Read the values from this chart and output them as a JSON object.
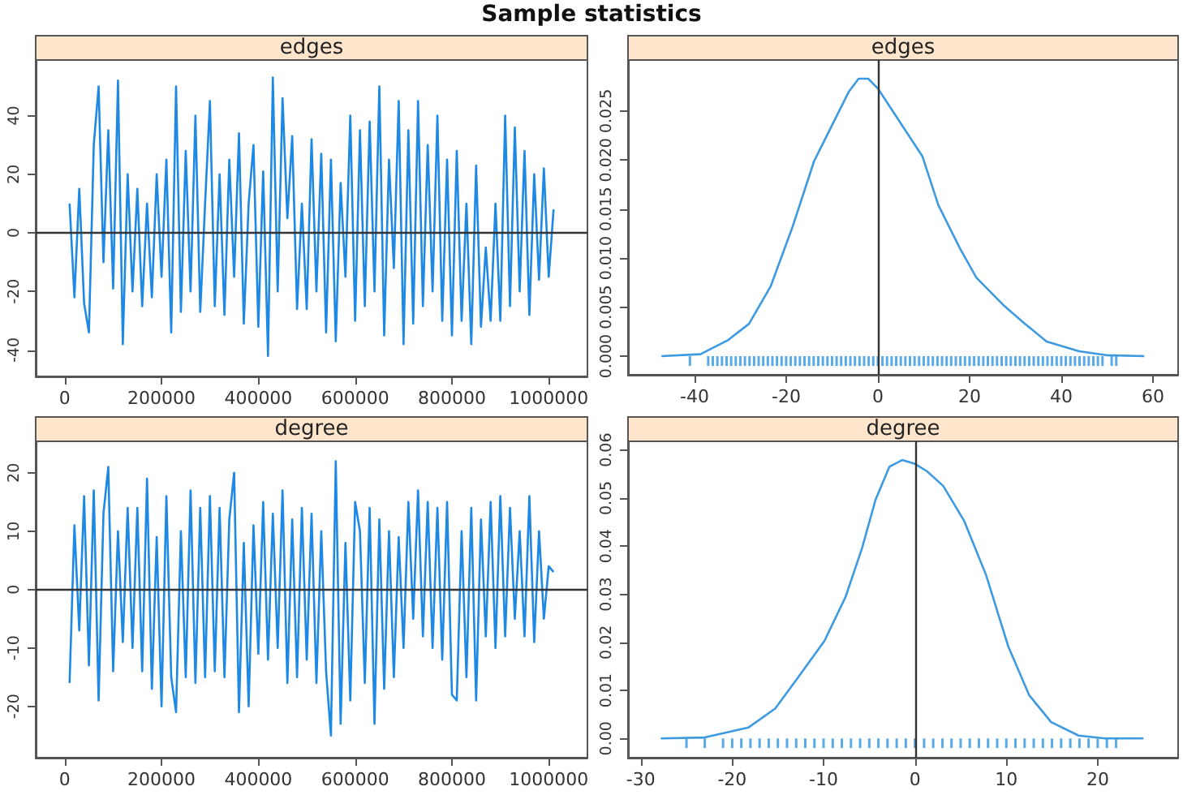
{
  "chart_data": [
    {
      "type": "line",
      "title": "edges",
      "annotations": [
        "Sample statistics"
      ],
      "x": [
        10000,
        20000,
        30000,
        40000,
        50000,
        60000,
        70000,
        80000,
        90000,
        100000,
        110000,
        120000,
        130000,
        140000,
        150000,
        160000,
        170000,
        180000,
        190000,
        200000,
        210000,
        220000,
        230000,
        240000,
        250000,
        260000,
        270000,
        280000,
        290000,
        300000,
        310000,
        320000,
        330000,
        340000,
        350000,
        360000,
        370000,
        380000,
        390000,
        400000,
        410000,
        420000,
        430000,
        440000,
        450000,
        460000,
        470000,
        480000,
        490000,
        500000,
        510000,
        520000,
        530000,
        540000,
        550000,
        560000,
        570000,
        580000,
        590000,
        600000,
        610000,
        620000,
        630000,
        640000,
        650000,
        660000,
        670000,
        680000,
        690000,
        700000,
        710000,
        720000,
        730000,
        740000,
        750000,
        760000,
        770000,
        780000,
        790000,
        800000,
        810000,
        820000,
        830000,
        840000,
        850000,
        860000,
        870000,
        880000,
        890000,
        900000,
        910000,
        920000,
        930000,
        940000,
        950000,
        960000,
        970000,
        980000,
        990000,
        1000000,
        1010000
      ],
      "series": [
        {
          "color": "#1e88e5",
          "values": [
            10,
            -22,
            15,
            -24,
            -34,
            30,
            50,
            -10,
            35,
            -19,
            52,
            -38,
            20,
            -20,
            15,
            -25,
            10,
            -22,
            20,
            -15,
            25,
            -34,
            50,
            -27,
            28,
            -20,
            40,
            -27,
            10,
            45,
            -25,
            20,
            -28,
            25,
            -15,
            34,
            -31,
            10,
            30,
            -32,
            21,
            -42,
            53,
            -20,
            46,
            5,
            33,
            -26,
            10,
            -26,
            32,
            -20,
            27,
            -34,
            25,
            -37,
            17,
            -15,
            40,
            -30,
            35,
            -25,
            38,
            -20,
            50,
            -35,
            25,
            -12,
            45,
            -38,
            35,
            -31,
            45,
            -25,
            30,
            -20,
            40,
            -30,
            25,
            -35,
            28,
            -30,
            10,
            -38,
            23,
            -32,
            -5,
            -30,
            10,
            -30,
            40,
            -25,
            36,
            -20,
            28,
            -28,
            20,
            -16,
            22,
            -15,
            8
          ]
        }
      ],
      "xlim": [
        -60000,
        1080000
      ],
      "xticks": [
        0,
        200000,
        400000,
        600000,
        800000,
        1000000
      ],
      "ylim": [
        -49,
        59
      ],
      "yticks": [
        -40,
        -20,
        0,
        20,
        40
      ],
      "ref_lines": [
        {
          "axis": "y",
          "value": 0,
          "color": "#333333"
        }
      ]
    },
    {
      "type": "line",
      "title": "edges",
      "series": [
        {
          "color": "#3d9ae0",
          "x": [
            -47.2,
            -38.7,
            -32.8,
            -28.1,
            -23.4,
            -18.6,
            -13.9,
            -9.2,
            -6.3,
            -4.2,
            -2.1,
            0,
            3.8,
            9.7,
            13.2,
            17.9,
            21.5,
            27.4,
            32.1,
            36.8,
            43.9,
            49.8,
            58.1
          ],
          "values": [
            0,
            0.0002,
            0.0016,
            0.0033,
            0.0071,
            0.0132,
            0.0199,
            0.0243,
            0.027,
            0.0283,
            0.0283,
            0.0273,
            0.0246,
            0.0204,
            0.0154,
            0.011,
            0.008,
            0.0052,
            0.0033,
            0.0015,
            0.0005,
            0.0001,
            0
          ]
        },
        {
          "type": "bar",
          "color": "#5aaae8",
          "x": [
            -41,
            -37,
            -36,
            -35,
            -34,
            -33,
            -32,
            -31,
            -30,
            -29,
            -28,
            -27,
            -26,
            -25,
            -24,
            -23,
            -22,
            -21,
            -20,
            -19,
            -18,
            -17,
            -16,
            -15,
            -14,
            -13,
            -12,
            -11,
            -10,
            -9,
            -8,
            -7,
            -6,
            -5,
            -4,
            -3,
            -2,
            -1,
            0,
            1,
            2,
            3,
            4,
            5,
            6,
            7,
            8,
            9,
            10,
            11,
            12,
            13,
            14,
            15,
            16,
            17,
            18,
            19,
            20,
            21,
            22,
            23,
            24,
            25,
            26,
            27,
            28,
            29,
            30,
            31,
            32,
            33,
            34,
            35,
            36,
            37,
            38,
            39,
            40,
            41,
            42,
            43,
            44,
            45,
            46,
            47,
            48,
            49,
            51,
            52
          ],
          "values": [
            -0.001,
            -0.001,
            -0.001,
            -0.001,
            -0.001,
            -0.001,
            -0.001,
            -0.001,
            -0.001,
            -0.001,
            -0.001,
            -0.001,
            -0.001,
            -0.001,
            -0.001,
            -0.001,
            -0.001,
            -0.001,
            -0.001,
            -0.001,
            -0.001,
            -0.001,
            -0.001,
            -0.001,
            -0.001,
            -0.001,
            -0.001,
            -0.001,
            -0.001,
            -0.001,
            -0.001,
            -0.001,
            -0.001,
            -0.001,
            -0.001,
            -0.001,
            -0.001,
            -0.001,
            -0.001,
            -0.001,
            -0.001,
            -0.001,
            -0.001,
            -0.001,
            -0.001,
            -0.001,
            -0.001,
            -0.001,
            -0.001,
            -0.001,
            -0.001,
            -0.001,
            -0.001,
            -0.001,
            -0.001,
            -0.001,
            -0.001,
            -0.001,
            -0.001,
            -0.001,
            -0.001,
            -0.001,
            -0.001,
            -0.001,
            -0.001,
            -0.001,
            -0.001,
            -0.001,
            -0.001,
            -0.001,
            -0.001,
            -0.001,
            -0.001,
            -0.001,
            -0.001,
            -0.001,
            -0.001,
            -0.001,
            -0.001,
            -0.001,
            -0.001,
            -0.001,
            -0.001,
            -0.001,
            -0.001,
            -0.001,
            -0.001,
            -0.001,
            -0.001,
            -0.001
          ]
        }
      ],
      "xlim": [
        -54.5,
        65.5
      ],
      "xticks": [
        -40,
        -20,
        0,
        20,
        40,
        60
      ],
      "ylim": [
        -0.0019,
        0.0302
      ],
      "yticks": [
        {
          "value": 0,
          "label": "0.000"
        },
        {
          "value": 0.005,
          "label": "0.005"
        },
        {
          "value": 0.01,
          "label": "0.010"
        },
        {
          "value": 0.015,
          "label": "0.015"
        },
        {
          "value": 0.02,
          "label": "0.020"
        },
        {
          "value": 0.025,
          "label": "0.025"
        }
      ],
      "ref_lines": [
        {
          "axis": "x",
          "value": 0,
          "color": "#333333"
        }
      ]
    },
    {
      "type": "line",
      "title": "degree",
      "x": [
        10000,
        20000,
        30000,
        40000,
        50000,
        60000,
        70000,
        80000,
        90000,
        100000,
        110000,
        120000,
        130000,
        140000,
        150000,
        160000,
        170000,
        180000,
        190000,
        200000,
        210000,
        220000,
        230000,
        240000,
        250000,
        260000,
        270000,
        280000,
        290000,
        300000,
        310000,
        320000,
        330000,
        340000,
        350000,
        360000,
        370000,
        380000,
        390000,
        400000,
        410000,
        420000,
        430000,
        440000,
        450000,
        460000,
        470000,
        480000,
        490000,
        500000,
        510000,
        520000,
        530000,
        540000,
        550000,
        560000,
        570000,
        580000,
        590000,
        600000,
        610000,
        620000,
        630000,
        640000,
        650000,
        660000,
        670000,
        680000,
        690000,
        700000,
        710000,
        720000,
        730000,
        740000,
        750000,
        760000,
        770000,
        780000,
        790000,
        800000,
        810000,
        820000,
        830000,
        840000,
        850000,
        860000,
        870000,
        880000,
        890000,
        900000,
        910000,
        920000,
        930000,
        940000,
        950000,
        960000,
        970000,
        980000,
        990000,
        1000000,
        1010000
      ],
      "series": [
        {
          "color": "#1e88e5",
          "values": [
            -16,
            11,
            -7,
            16,
            -13,
            17,
            -19,
            13,
            21,
            -14,
            10,
            -9,
            14,
            -10,
            14,
            -14,
            19,
            -17,
            9,
            -20,
            16,
            -15,
            -21,
            10,
            -15,
            17,
            -16,
            14,
            -15,
            16,
            -14,
            14,
            -15,
            12,
            20,
            -21,
            8,
            -20,
            11,
            -11,
            15,
            -12,
            13,
            -10,
            17,
            -16,
            12,
            -15,
            14,
            -12,
            13,
            -16,
            10,
            -14,
            -25,
            22,
            -23,
            8,
            -19,
            15,
            10,
            -16,
            14,
            -23,
            12,
            -17,
            10,
            -15,
            9,
            -10,
            15,
            -5,
            17,
            -8,
            15,
            -10,
            14,
            -12,
            15,
            -18,
            -19,
            10,
            -15,
            14,
            -19,
            12,
            -8,
            15,
            -10,
            16,
            -8,
            14,
            -5,
            10,
            -8,
            16,
            -9,
            10,
            -5,
            4,
            3
          ]
        }
      ],
      "xlim": [
        -60000,
        1080000
      ],
      "xticks": [
        0,
        200000,
        400000,
        600000,
        800000,
        1000000
      ],
      "ylim": [
        -28.8,
        25.4
      ],
      "yticks": [
        -20,
        -10,
        0,
        10,
        20
      ],
      "ref_lines": [
        {
          "axis": "y",
          "value": 0,
          "color": "#333333"
        }
      ]
    },
    {
      "type": "line",
      "title": "degree",
      "series": [
        {
          "color": "#3d9ae0",
          "x": [
            -27.8,
            -23,
            -18.2,
            -15.3,
            -12.9,
            -9.9,
            -7.6,
            -5.8,
            -4.3,
            -2.8,
            -1.4,
            0,
            1.3,
            3.1,
            5.4,
            7.8,
            10.2,
            12.5,
            14.9,
            17.9,
            20.8,
            25
          ],
          "values": [
            0,
            0.0002,
            0.0023,
            0.0062,
            0.0124,
            0.0203,
            0.0294,
            0.0395,
            0.0497,
            0.0565,
            0.0579,
            0.0571,
            0.0556,
            0.0525,
            0.0452,
            0.0339,
            0.0192,
            0.009,
            0.0034,
            0.0006,
            0,
            0
          ]
        },
        {
          "type": "bar",
          "color": "#5aaae8",
          "x": [
            -25,
            -23,
            -21,
            -20,
            -19,
            -18,
            -17,
            -16,
            -15,
            -14,
            -13,
            -12,
            -11,
            -10,
            -9,
            -8,
            -7,
            -6,
            -5,
            -4,
            -3,
            -2,
            -1,
            0,
            1,
            2,
            3,
            4,
            5,
            6,
            7,
            8,
            9,
            10,
            11,
            12,
            13,
            14,
            15,
            16,
            17,
            18,
            19,
            20,
            21,
            22
          ],
          "values": [
            -0.002,
            -0.002,
            -0.002,
            -0.002,
            -0.002,
            -0.002,
            -0.002,
            -0.002,
            -0.002,
            -0.002,
            -0.002,
            -0.002,
            -0.002,
            -0.002,
            -0.002,
            -0.002,
            -0.002,
            -0.002,
            -0.002,
            -0.002,
            -0.002,
            -0.002,
            -0.002,
            -0.002,
            -0.002,
            -0.002,
            -0.002,
            -0.002,
            -0.002,
            -0.002,
            -0.002,
            -0.002,
            -0.002,
            -0.002,
            -0.002,
            -0.002,
            -0.002,
            -0.002,
            -0.002,
            -0.002,
            -0.002,
            -0.002,
            -0.002,
            -0.002,
            -0.002,
            -0.002
          ]
        }
      ],
      "xlim": [
        -31.4,
        28.8
      ],
      "xticks": [
        -30,
        -20,
        -10,
        0,
        10,
        20
      ],
      "ylim": [
        -0.004,
        0.0618
      ],
      "yticks": [
        {
          "value": 0,
          "label": "0.00"
        },
        {
          "value": 0.01,
          "label": "0.01"
        },
        {
          "value": 0.02,
          "label": "0.02"
        },
        {
          "value": 0.03,
          "label": "0.03"
        },
        {
          "value": 0.04,
          "label": "0.04"
        },
        {
          "value": 0.05,
          "label": "0.05"
        },
        {
          "value": 0.06,
          "label": "0.06"
        }
      ],
      "ref_lines": [
        {
          "axis": "x",
          "value": 0,
          "color": "#333333"
        }
      ]
    }
  ]
}
